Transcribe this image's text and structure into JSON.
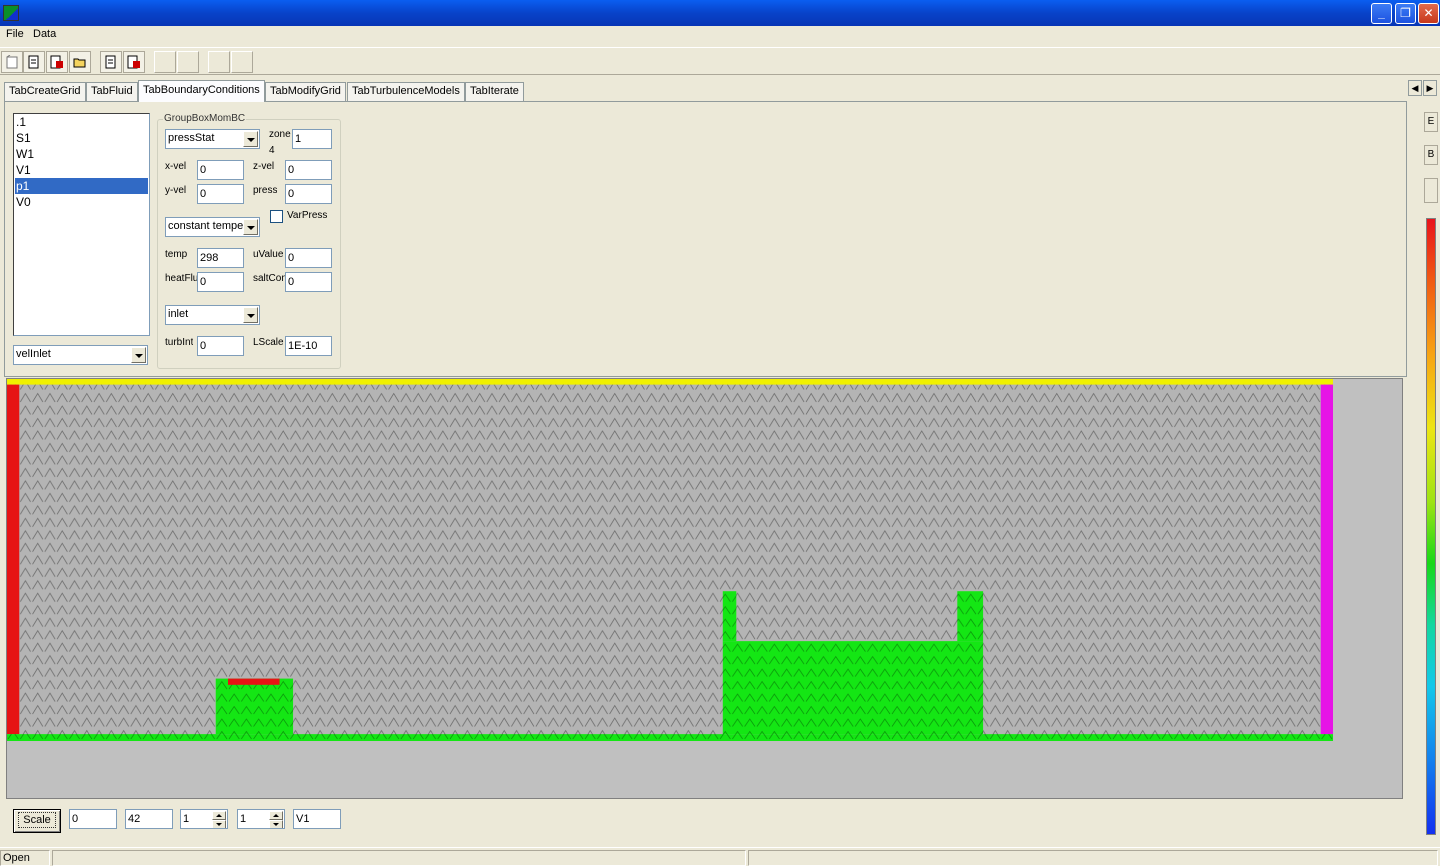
{
  "window": {
    "title": ""
  },
  "menu": {
    "file": "File",
    "data": "Data"
  },
  "tabs": [
    {
      "label": "TabCreateGrid"
    },
    {
      "label": "TabFluid"
    },
    {
      "label": "TabBoundaryConditions"
    },
    {
      "label": "TabModifyGrid"
    },
    {
      "label": "TabTurbulenceModels"
    },
    {
      "label": "TabIterate"
    }
  ],
  "boundary_list": {
    "items": [
      ".1",
      "S1",
      "W1",
      "V1",
      "p1",
      "V0"
    ],
    "selected": "p1"
  },
  "bc_type_combo": {
    "value": "velInlet"
  },
  "groupbox": {
    "title": "GroupBoxMomBC",
    "pressure_combo": "pressStat",
    "zone_label": "zone",
    "zone_value": "1",
    "zone_number": "4",
    "x_vel_label": "x-vel",
    "x_vel_value": "0",
    "z_vel_label": "z-vel",
    "z_vel_value": "0",
    "y_vel_label": "y-vel",
    "y_vel_value": "0",
    "press_label": "press",
    "press_value": "0",
    "varpress_label": "VarPress",
    "varpress_checked": false,
    "temp_combo": "constant tempe",
    "temp_label": "temp",
    "temp_value": "298",
    "uvalue_label": "uValue",
    "uvalue_value": "0",
    "heatflux_label": "heatFlux",
    "heatflux_value": "0",
    "saltconc_label": "saltConc",
    "saltconc_value": "0",
    "turb_combo": "inlet",
    "turbint_label": "turbInt",
    "turbint_value": "0",
    "lscale_label": "LScale",
    "lscale_value": "1E-10"
  },
  "bottom_controls": {
    "scale_label": "Scale",
    "field1": "0",
    "field2": "42",
    "spin1": "1",
    "spin2": "1",
    "field3": "V1"
  },
  "right_panel": {
    "btn_e": "E",
    "btn_b": "B"
  },
  "status": {
    "text": "Open"
  },
  "grid": {
    "columns": 108,
    "rows": 29,
    "colors": {
      "fluid": "#b4b4b4",
      "wall": "#14e614",
      "inlet": "#e61414",
      "outlet": "#e614e6",
      "top": "#f0f000",
      "background": "#c0c0c0",
      "colorbar_top": "#e8141c",
      "colorbar_bottom": "#1430f0"
    }
  }
}
